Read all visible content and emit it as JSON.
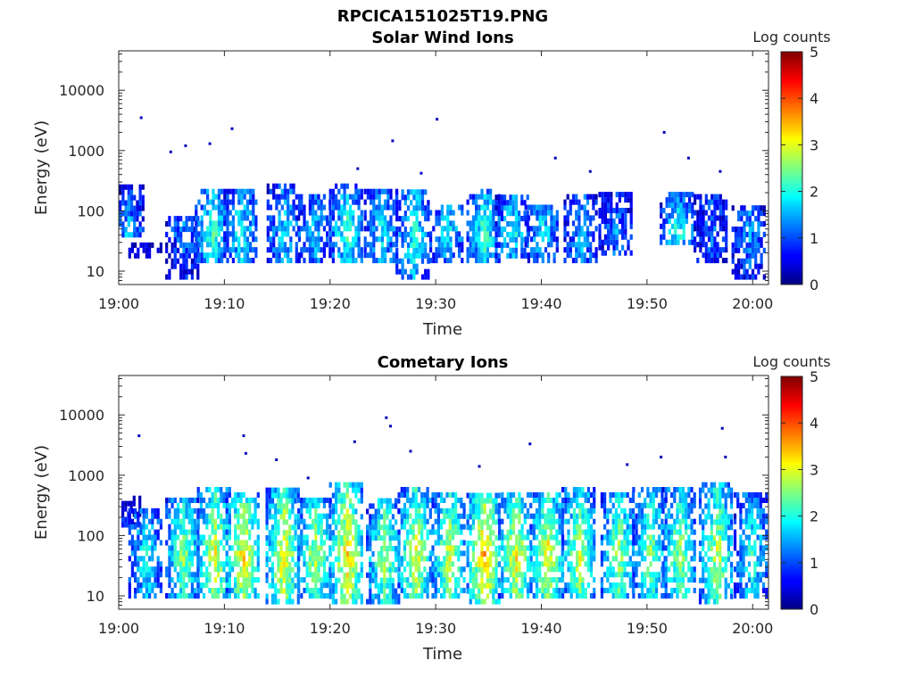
{
  "figure": {
    "title": "RPCICA151025T19.PNG"
  },
  "chart_data": [
    {
      "type": "heatmap",
      "title": "Solar Wind Ions",
      "xlabel": "Time",
      "ylabel": "Energy (eV)",
      "x_tick_labels": [
        "19:00",
        "19:10",
        "19:20",
        "19:30",
        "19:40",
        "19:50",
        "20:00"
      ],
      "x_range_minutes": [
        0,
        61.5
      ],
      "y_scale": "log",
      "y_range": [
        6,
        45000
      ],
      "y_tick_values": [
        10,
        100,
        1000,
        10000
      ],
      "y_tick_labels": [
        "10",
        "100",
        "1000",
        "10000"
      ],
      "colorbar": {
        "label": "Log counts",
        "range": [
          0,
          5
        ],
        "tick_labels": [
          "0",
          "1",
          "2",
          "3",
          "4",
          "5"
        ],
        "colormap": "jet"
      },
      "grid": false,
      "bursts": [
        {
          "t": 0.8,
          "emin": 40,
          "emax": 300,
          "peak": 1.6
        },
        {
          "t": 2.5,
          "emin": 18,
          "emax": 30,
          "peak": 0.7
        },
        {
          "t": 6.0,
          "emin": 8,
          "emax": 80,
          "peak": 1.3
        },
        {
          "t": 8.8,
          "emin": 15,
          "emax": 240,
          "peak": 2.2
        },
        {
          "t": 11.5,
          "emin": 15,
          "emax": 220,
          "peak": 2.0
        },
        {
          "t": 15.6,
          "emin": 15,
          "emax": 300,
          "peak": 1.8
        },
        {
          "t": 18.5,
          "emin": 15,
          "emax": 200,
          "peak": 1.6
        },
        {
          "t": 21.5,
          "emin": 15,
          "emax": 300,
          "peak": 2.2
        },
        {
          "t": 24.8,
          "emin": 15,
          "emax": 250,
          "peak": 1.8
        },
        {
          "t": 27.8,
          "emin": 8,
          "emax": 250,
          "peak": 2.0
        },
        {
          "t": 31.0,
          "emin": 15,
          "emax": 130,
          "peak": 1.9
        },
        {
          "t": 34.5,
          "emin": 15,
          "emax": 220,
          "peak": 2.2
        },
        {
          "t": 37.2,
          "emin": 18,
          "emax": 180,
          "peak": 2.0
        },
        {
          "t": 40.0,
          "emin": 15,
          "emax": 120,
          "peak": 1.8
        },
        {
          "t": 43.7,
          "emin": 15,
          "emax": 200,
          "peak": 1.6
        },
        {
          "t": 47.0,
          "emin": 20,
          "emax": 200,
          "peak": 1.3
        },
        {
          "t": 52.8,
          "emin": 30,
          "emax": 220,
          "peak": 2.1
        },
        {
          "t": 56.0,
          "emin": 15,
          "emax": 200,
          "peak": 1.2
        },
        {
          "t": 59.6,
          "emin": 8,
          "emax": 120,
          "peak": 1.4
        }
      ],
      "isolated_points": [
        {
          "t": 2.0,
          "e": 3500
        },
        {
          "t": 4.8,
          "e": 950
        },
        {
          "t": 6.2,
          "e": 1200
        },
        {
          "t": 8.5,
          "e": 1300
        },
        {
          "t": 10.6,
          "e": 2300
        },
        {
          "t": 25.8,
          "e": 1450
        },
        {
          "t": 30.0,
          "e": 3300
        },
        {
          "t": 41.2,
          "e": 750
        },
        {
          "t": 51.5,
          "e": 2000
        },
        {
          "t": 53.8,
          "e": 750
        },
        {
          "t": 22.5,
          "e": 500
        },
        {
          "t": 28.5,
          "e": 420
        },
        {
          "t": 44.5,
          "e": 450
        },
        {
          "t": 56.8,
          "e": 450
        }
      ]
    },
    {
      "type": "heatmap",
      "title": "Cometary Ions",
      "xlabel": "Time",
      "ylabel": "Energy (eV)",
      "x_tick_labels": [
        "19:00",
        "19:10",
        "19:20",
        "19:30",
        "19:40",
        "19:50",
        "20:00"
      ],
      "x_range_minutes": [
        0,
        61.5
      ],
      "y_scale": "log",
      "y_range": [
        6,
        45000
      ],
      "y_tick_values": [
        10,
        100,
        1000,
        10000
      ],
      "y_tick_labels": [
        "10",
        "100",
        "1000",
        "10000"
      ],
      "colorbar": {
        "label": "Log counts",
        "range": [
          0,
          5
        ],
        "tick_labels": [
          "0",
          "1",
          "2",
          "3",
          "4",
          "5"
        ],
        "colormap": "jet"
      },
      "grid": false,
      "bursts": [
        {
          "t": 0.5,
          "emin": 150,
          "emax": 500,
          "peak": 2.2
        },
        {
          "t": 2.5,
          "emin": 10,
          "emax": 300,
          "peak": 2.0
        },
        {
          "t": 6.0,
          "emin": 10,
          "emax": 400,
          "peak": 2.6
        },
        {
          "t": 9.0,
          "emin": 10,
          "emax": 600,
          "peak": 3.1
        },
        {
          "t": 11.7,
          "emin": 10,
          "emax": 500,
          "peak": 3.3
        },
        {
          "t": 15.5,
          "emin": 8,
          "emax": 650,
          "peak": 3.3
        },
        {
          "t": 18.5,
          "emin": 10,
          "emax": 400,
          "peak": 2.9
        },
        {
          "t": 21.5,
          "emin": 8,
          "emax": 800,
          "peak": 3.4
        },
        {
          "t": 25.0,
          "emin": 8,
          "emax": 450,
          "peak": 2.7
        },
        {
          "t": 28.0,
          "emin": 10,
          "emax": 600,
          "peak": 3.1
        },
        {
          "t": 31.2,
          "emin": 10,
          "emax": 500,
          "peak": 3.0
        },
        {
          "t": 34.5,
          "emin": 8,
          "emax": 550,
          "peak": 3.6
        },
        {
          "t": 37.5,
          "emin": 10,
          "emax": 500,
          "peak": 3.2
        },
        {
          "t": 40.5,
          "emin": 10,
          "emax": 500,
          "peak": 3.2
        },
        {
          "t": 43.5,
          "emin": 10,
          "emax": 600,
          "peak": 2.9
        },
        {
          "t": 47.2,
          "emin": 10,
          "emax": 550,
          "peak": 2.7
        },
        {
          "t": 50.2,
          "emin": 10,
          "emax": 700,
          "peak": 2.6
        },
        {
          "t": 53.0,
          "emin": 10,
          "emax": 650,
          "peak": 2.7
        },
        {
          "t": 56.5,
          "emin": 8,
          "emax": 700,
          "peak": 2.9
        },
        {
          "t": 59.8,
          "emin": 10,
          "emax": 500,
          "peak": 2.1
        }
      ],
      "isolated_points": [
        {
          "t": 1.8,
          "e": 4500
        },
        {
          "t": 11.7,
          "e": 4500
        },
        {
          "t": 11.9,
          "e": 2300
        },
        {
          "t": 14.8,
          "e": 1800
        },
        {
          "t": 17.8,
          "e": 900
        },
        {
          "t": 22.2,
          "e": 3600
        },
        {
          "t": 25.2,
          "e": 9000
        },
        {
          "t": 25.6,
          "e": 6500
        },
        {
          "t": 27.5,
          "e": 2500
        },
        {
          "t": 34.0,
          "e": 1400
        },
        {
          "t": 38.8,
          "e": 3300
        },
        {
          "t": 48.0,
          "e": 1500
        },
        {
          "t": 51.2,
          "e": 2000
        },
        {
          "t": 57.0,
          "e": 6000
        },
        {
          "t": 57.3,
          "e": 2000
        }
      ]
    }
  ]
}
